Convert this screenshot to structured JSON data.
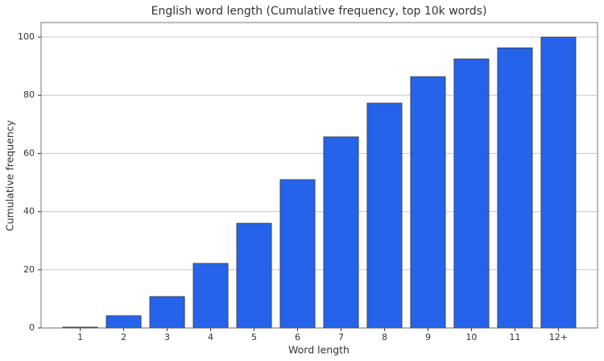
{
  "chart_data": {
    "type": "bar",
    "title": "English word length (Cumulative frequency, top 10k words)",
    "x_label": "Word length",
    "y_label": "Cumulative frequency",
    "categories": [
      "1",
      "2",
      "3",
      "4",
      "5",
      "6",
      "7",
      "8",
      "9",
      "10",
      "11",
      "12+"
    ],
    "values": [
      0.3,
      4.2,
      10.8,
      22.2,
      36.0,
      51.0,
      65.7,
      77.3,
      86.4,
      92.5,
      96.3,
      100
    ],
    "color": "#2563eb",
    "ylim": [
      0,
      105
    ],
    "yticks": [
      0,
      20,
      40,
      60,
      80,
      100
    ],
    "grid": true
  }
}
